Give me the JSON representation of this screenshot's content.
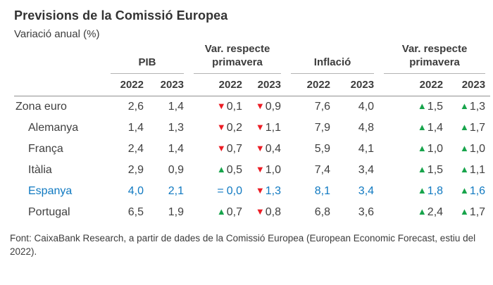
{
  "title": "Previsions de la Comissió Europea",
  "subtitle": "Variació anual (%)",
  "footer": "Font: CaixaBank Research, a partir de dades de la Comissió Europea (European Economic Forecast, estiu del 2022).",
  "colors": {
    "text": "#3c3c3c",
    "highlight_blue": "#1079c1",
    "arrow_down_red": "#ec1c24",
    "arrow_up_green": "#17a44b",
    "rule_light": "#b3b3b3",
    "rule_dark": "#8f8f8f"
  },
  "icons": {
    "up": "▲",
    "down": "▼",
    "equal": "="
  },
  "chart_data": {
    "type": "table",
    "title": "Previsions de la Comissió Europea",
    "subtitle": "Variació anual (%)",
    "column_groups": [
      "PIB",
      "Var. respecte primavera",
      "Inflació",
      "Var. respecte primavera"
    ],
    "years": [
      "2022",
      "2023"
    ],
    "rows": [
      {
        "label": "Zona euro",
        "indent": false,
        "highlight": false,
        "pib": [
          "2,6",
          "1,4"
        ],
        "var_pib": [
          {
            "dir": "down",
            "value": "0,1"
          },
          {
            "dir": "down",
            "value": "0,9"
          }
        ],
        "inflacio": [
          "7,6",
          "4,0"
        ],
        "var_inflacio": [
          {
            "dir": "up",
            "value": "1,5"
          },
          {
            "dir": "up",
            "value": "1,3"
          }
        ]
      },
      {
        "label": "Alemanya",
        "indent": true,
        "highlight": false,
        "pib": [
          "1,4",
          "1,3"
        ],
        "var_pib": [
          {
            "dir": "down",
            "value": "0,2"
          },
          {
            "dir": "down",
            "value": "1,1"
          }
        ],
        "inflacio": [
          "7,9",
          "4,8"
        ],
        "var_inflacio": [
          {
            "dir": "up",
            "value": "1,4"
          },
          {
            "dir": "up",
            "value": "1,7"
          }
        ]
      },
      {
        "label": "França",
        "indent": true,
        "highlight": false,
        "pib": [
          "2,4",
          "1,4"
        ],
        "var_pib": [
          {
            "dir": "down",
            "value": "0,7"
          },
          {
            "dir": "down",
            "value": "0,4"
          }
        ],
        "inflacio": [
          "5,9",
          "4,1"
        ],
        "var_inflacio": [
          {
            "dir": "up",
            "value": "1,0"
          },
          {
            "dir": "up",
            "value": "1,0"
          }
        ]
      },
      {
        "label": "Itàlia",
        "indent": true,
        "highlight": false,
        "pib": [
          "2,9",
          "0,9"
        ],
        "var_pib": [
          {
            "dir": "up",
            "value": "0,5"
          },
          {
            "dir": "down",
            "value": "1,0"
          }
        ],
        "inflacio": [
          "7,4",
          "3,4"
        ],
        "var_inflacio": [
          {
            "dir": "up",
            "value": "1,5"
          },
          {
            "dir": "up",
            "value": "1,1"
          }
        ]
      },
      {
        "label": "Espanya",
        "indent": true,
        "highlight": true,
        "pib": [
          "4,0",
          "2,1"
        ],
        "var_pib": [
          {
            "dir": "equal",
            "value": "0,0"
          },
          {
            "dir": "down",
            "value": "1,3"
          }
        ],
        "inflacio": [
          "8,1",
          "3,4"
        ],
        "var_inflacio": [
          {
            "dir": "up",
            "value": "1,8"
          },
          {
            "dir": "up",
            "value": "1,6"
          }
        ]
      },
      {
        "label": "Portugal",
        "indent": true,
        "highlight": false,
        "pib": [
          "6,5",
          "1,9"
        ],
        "var_pib": [
          {
            "dir": "up",
            "value": "0,7"
          },
          {
            "dir": "down",
            "value": "0,8"
          }
        ],
        "inflacio": [
          "6,8",
          "3,6"
        ],
        "var_inflacio": [
          {
            "dir": "up",
            "value": "2,4"
          },
          {
            "dir": "up",
            "value": "1,7"
          }
        ]
      }
    ]
  }
}
